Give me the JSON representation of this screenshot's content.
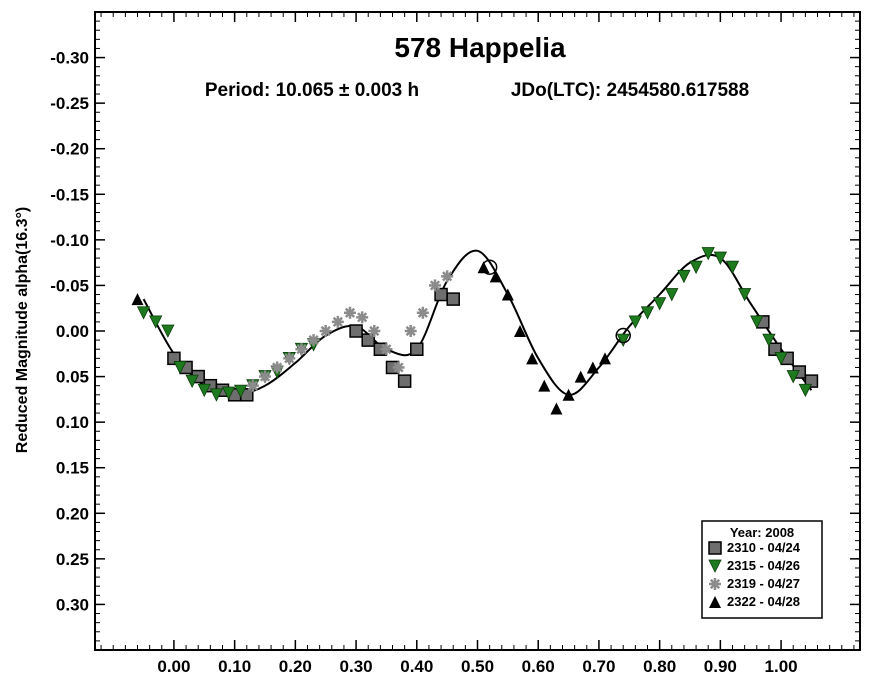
{
  "chart_data": {
    "type": "scatter",
    "title": "578 Happelia",
    "subtitle_period": "Period: 10.065 ± 0.003 h",
    "subtitle_epoch": "JDo(LTC): 2454580.617588",
    "xlabel": "",
    "ylabel": "Reduced Magnitude alpha(16.3°)",
    "xlim": [
      -0.13,
      1.13
    ],
    "ylim": [
      -0.35,
      0.35
    ],
    "y_inverted": true,
    "x_ticks": [
      "0.00",
      "0.10",
      "0.20",
      "0.30",
      "0.40",
      "0.50",
      "0.60",
      "0.70",
      "0.80",
      "0.90",
      "1.00"
    ],
    "y_ticks": [
      "-0.30",
      "-0.25",
      "-0.20",
      "-0.15",
      "-0.10",
      "-0.05",
      "0.00",
      "0.05",
      "0.10",
      "0.15",
      "0.20",
      "0.25",
      "0.30"
    ],
    "grid": false,
    "legend": {
      "position": "bottom-right",
      "title": "Year: 2008",
      "entries": [
        {
          "label": "2310 - 04/24",
          "marker": "square",
          "color": "#6e6e6e"
        },
        {
          "label": "2315 - 04/26",
          "marker": "triangle-down",
          "color": "#1e7a1e"
        },
        {
          "label": "2319 - 04/27",
          "marker": "asterisk",
          "color": "#8c8c8c"
        },
        {
          "label": "2322 - 04/28",
          "marker": "triangle-up",
          "color": "#000000"
        }
      ]
    },
    "fit_curve": {
      "x": [
        -0.05,
        0.0,
        0.05,
        0.1,
        0.15,
        0.2,
        0.25,
        0.3,
        0.35,
        0.4,
        0.45,
        0.5,
        0.55,
        0.6,
        0.65,
        0.7,
        0.75,
        0.8,
        0.85,
        0.9,
        0.95,
        1.0,
        1.05
      ],
      "y": [
        -0.035,
        0.025,
        0.06,
        0.07,
        0.06,
        0.035,
        0.005,
        -0.005,
        0.02,
        0.02,
        -0.055,
        -0.088,
        -0.04,
        0.03,
        0.07,
        0.04,
        -0.005,
        -0.04,
        -0.075,
        -0.08,
        -0.03,
        0.02,
        0.065
      ]
    },
    "series": [
      {
        "name": "2310 - 04/24",
        "x": [
          0.0,
          0.02,
          0.04,
          0.06,
          0.08,
          0.1,
          0.12,
          0.3,
          0.32,
          0.34,
          0.36,
          0.38,
          0.4,
          0.44,
          0.46,
          0.97,
          0.99,
          1.01,
          1.03,
          1.05
        ],
        "y": [
          0.03,
          0.04,
          0.05,
          0.06,
          0.065,
          0.07,
          0.07,
          0.0,
          0.01,
          0.02,
          0.04,
          0.055,
          0.02,
          -0.04,
          -0.035,
          -0.01,
          0.02,
          0.03,
          0.045,
          0.055
        ]
      },
      {
        "name": "2315 - 04/26",
        "x": [
          -0.05,
          -0.03,
          -0.01,
          0.01,
          0.03,
          0.05,
          0.07,
          0.09,
          0.11,
          0.13,
          0.15,
          0.17,
          0.19,
          0.21,
          0.23,
          0.74,
          0.76,
          0.78,
          0.8,
          0.82,
          0.84,
          0.86,
          0.88,
          0.9,
          0.92,
          0.94,
          0.96,
          0.98,
          1.0,
          1.02,
          1.04
        ],
        "y": [
          -0.02,
          -0.01,
          0.0,
          0.04,
          0.055,
          0.065,
          0.07,
          0.068,
          0.066,
          0.06,
          0.05,
          0.045,
          0.03,
          0.02,
          0.015,
          0.01,
          -0.01,
          -0.02,
          -0.03,
          -0.04,
          -0.06,
          -0.07,
          -0.085,
          -0.08,
          -0.07,
          -0.04,
          -0.01,
          0.01,
          0.03,
          0.05,
          0.065
        ]
      },
      {
        "name": "2319 - 04/27",
        "x": [
          0.13,
          0.15,
          0.17,
          0.19,
          0.21,
          0.23,
          0.25,
          0.27,
          0.29,
          0.31,
          0.33,
          0.35,
          0.37,
          0.39,
          0.41,
          0.43,
          0.45
        ],
        "y": [
          0.06,
          0.05,
          0.04,
          0.03,
          0.02,
          0.01,
          0.0,
          -0.01,
          -0.02,
          -0.015,
          0.0,
          0.02,
          0.04,
          0.0,
          -0.02,
          -0.05,
          -0.06
        ]
      },
      {
        "name": "2322 - 04/28",
        "x": [
          -0.06,
          0.51,
          0.53,
          0.55,
          0.57,
          0.59,
          0.61,
          0.63,
          0.65,
          0.67,
          0.69,
          0.71
        ],
        "y": [
          -0.035,
          -0.07,
          -0.06,
          -0.04,
          0.0,
          0.03,
          0.06,
          0.085,
          0.07,
          0.05,
          0.04,
          0.03
        ]
      }
    ],
    "annotations": [
      {
        "marker": "circle",
        "x": 0.52,
        "y": -0.07
      },
      {
        "marker": "circle",
        "x": 0.74,
        "y": 0.005
      }
    ]
  }
}
